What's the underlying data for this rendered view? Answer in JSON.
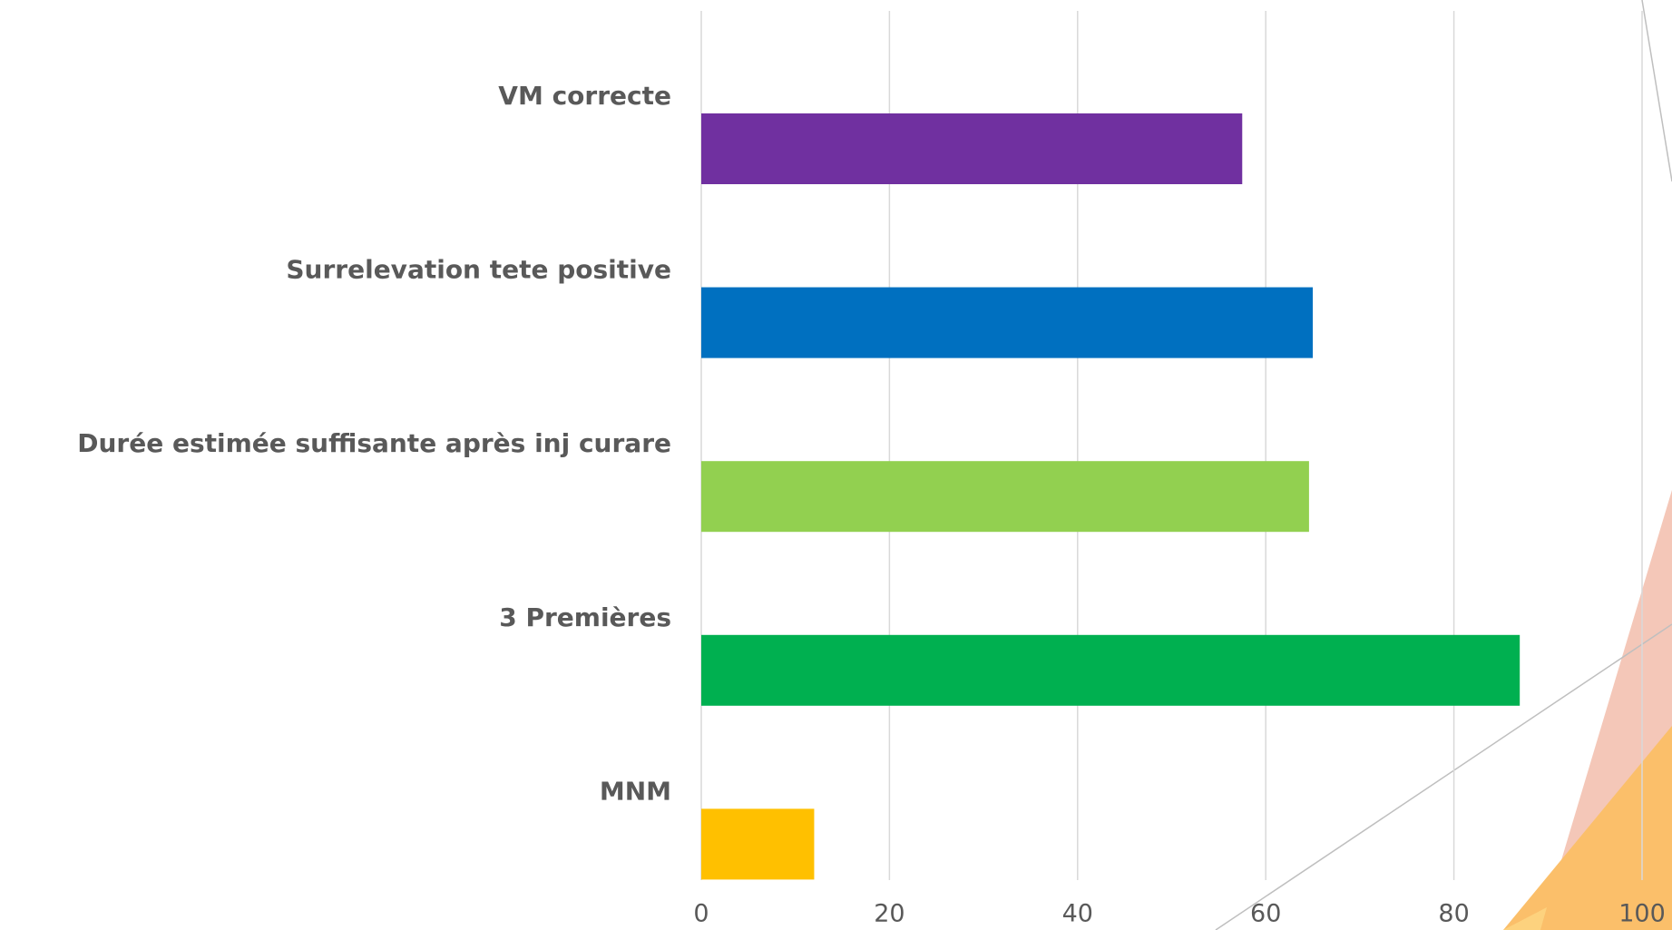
{
  "chart_data": {
    "type": "bar",
    "orientation": "horizontal",
    "categories": [
      "VM correcte",
      "Surrelevation tete positive",
      "Durée estimée suffisante après inj curare",
      "3 Premières",
      "MNM"
    ],
    "values": [
      57.5,
      65,
      64.6,
      87,
      12
    ],
    "colors": [
      "#7030a0",
      "#0070c0",
      "#92d050",
      "#00b050",
      "#ffc000"
    ],
    "xlim": [
      0,
      100
    ],
    "xticks": [
      0,
      20,
      40,
      60,
      80,
      100
    ],
    "grid": true
  }
}
